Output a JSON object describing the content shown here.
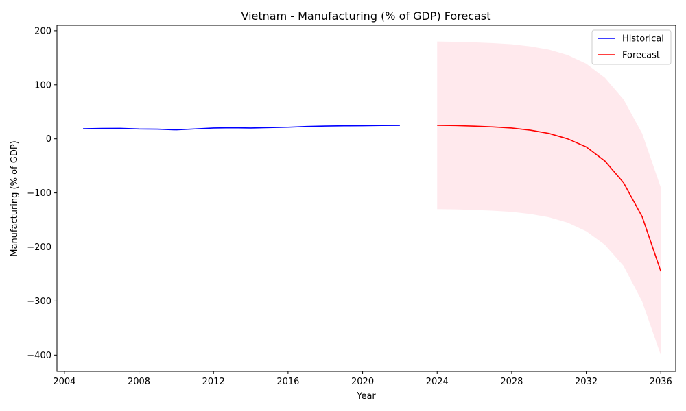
{
  "chart_data": {
    "type": "line",
    "title": "Vietnam - Manufacturing (% of GDP) Forecast",
    "xlabel": "Year",
    "ylabel": "Manufacturing (% of GDP)",
    "xlim": [
      2003.6,
      2036.8
    ],
    "ylim": [
      -430,
      210
    ],
    "xticks": [
      2004,
      2008,
      2012,
      2016,
      2020,
      2024,
      2028,
      2032,
      2036
    ],
    "yticks": [
      -400,
      -300,
      -200,
      -100,
      0,
      100,
      200
    ],
    "legend_position": "top-right",
    "grid": false,
    "series": [
      {
        "name": "Historical",
        "color": "#0000ff",
        "x": [
          2005,
          2006,
          2007,
          2008,
          2009,
          2010,
          2011,
          2012,
          2013,
          2014,
          2015,
          2016,
          2017,
          2018,
          2019,
          2020,
          2021,
          2022
        ],
        "values": [
          18.5,
          19.2,
          19.3,
          18.2,
          17.9,
          16.6,
          18.3,
          20.0,
          20.4,
          20.0,
          20.8,
          21.5,
          22.8,
          23.6,
          24.1,
          24.2,
          24.7,
          24.9
        ]
      },
      {
        "name": "Forecast",
        "color": "#ff0000",
        "x": [
          2024,
          2025,
          2026,
          2027,
          2028,
          2029,
          2030,
          2031,
          2032,
          2033,
          2034,
          2035,
          2036
        ],
        "values": [
          25,
          24.5,
          23.5,
          22,
          20,
          16,
          10,
          0,
          -15,
          -41,
          -81,
          -144,
          -245
        ]
      }
    ],
    "confidence_band": {
      "color": "#ffc0cb",
      "opacity": 0.35,
      "x": [
        2024,
        2025,
        2026,
        2027,
        2028,
        2029,
        2030,
        2031,
        2032,
        2033,
        2034,
        2035,
        2036
      ],
      "upper": [
        180,
        179.5,
        178.5,
        177,
        175,
        171,
        165,
        155,
        139,
        113,
        73,
        10,
        -90
      ],
      "lower": [
        -130,
        -130.5,
        -131.5,
        -133,
        -135,
        -139,
        -145,
        -155,
        -171,
        -196,
        -235,
        -301,
        -400
      ]
    }
  }
}
